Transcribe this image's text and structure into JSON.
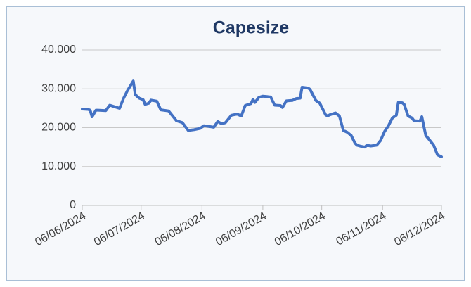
{
  "chart_data": {
    "type": "line",
    "title": "Capesize",
    "x": [
      "2024-06-06",
      "2024-06-09",
      "2024-06-10",
      "2024-06-11",
      "2024-06-13",
      "2024-06-14",
      "2024-06-18",
      "2024-06-20",
      "2024-06-23",
      "2024-06-25",
      "2024-06-27",
      "2024-06-29",
      "2024-07-02",
      "2024-07-03",
      "2024-07-05",
      "2024-07-07",
      "2024-07-08",
      "2024-07-10",
      "2024-07-11",
      "2024-07-14",
      "2024-07-16",
      "2024-07-20",
      "2024-07-24",
      "2024-07-27",
      "2024-07-30",
      "2024-08-02",
      "2024-08-05",
      "2024-08-07",
      "2024-08-11",
      "2024-08-12",
      "2024-08-14",
      "2024-08-16",
      "2024-08-18",
      "2024-08-21",
      "2024-08-24",
      "2024-08-26",
      "2024-08-28",
      "2024-08-31",
      "2024-09-01",
      "2024-09-02",
      "2024-09-04",
      "2024-09-06",
      "2024-09-08",
      "2024-09-10",
      "2024-09-12",
      "2024-09-15",
      "2024-09-16",
      "2024-09-18",
      "2024-09-21",
      "2024-09-23",
      "2024-09-25",
      "2024-09-26",
      "2024-09-29",
      "2024-09-30",
      "2024-10-03",
      "2024-10-05",
      "2024-10-08",
      "2024-10-09",
      "2024-10-10",
      "2024-10-13",
      "2024-10-15",
      "2024-10-17",
      "2024-10-19",
      "2024-10-21",
      "2024-10-23",
      "2024-10-24",
      "2024-10-26",
      "2024-10-28",
      "2024-10-29",
      "2024-10-31",
      "2024-11-03",
      "2024-11-05",
      "2024-11-07",
      "2024-11-09",
      "2024-11-11",
      "2024-11-13",
      "2024-11-14",
      "2024-11-16",
      "2024-11-17",
      "2024-11-19",
      "2024-11-21",
      "2024-11-22",
      "2024-11-25",
      "2024-11-26",
      "2024-11-28",
      "2024-11-30",
      "2024-12-02",
      "2024-12-04",
      "2024-12-06"
    ],
    "series": [
      {
        "name": "Capesize",
        "color": "#4472c4",
        "values": [
          24800,
          24700,
          24500,
          22800,
          24500,
          24500,
          24400,
          25800,
          25300,
          25000,
          27500,
          29500,
          32000,
          28500,
          27600,
          27200,
          26000,
          26300,
          27100,
          26800,
          24600,
          24300,
          21800,
          21300,
          19300,
          19500,
          19800,
          20500,
          20200,
          20100,
          21600,
          21000,
          21300,
          23200,
          23500,
          23000,
          25700,
          26200,
          27300,
          26500,
          27800,
          28100,
          28000,
          27900,
          25800,
          25700,
          25200,
          26900,
          27000,
          27500,
          27600,
          30400,
          30200,
          29900,
          27000,
          26300,
          23300,
          23000,
          23300,
          23800,
          23000,
          19300,
          18800,
          18000,
          16000,
          15500,
          15200,
          15000,
          15500,
          15300,
          15500,
          16700,
          19000,
          20500,
          22500,
          23200,
          26500,
          26400,
          26000,
          23000,
          22500,
          21800,
          21700,
          22800,
          18000,
          16800,
          15500,
          13000,
          12500
        ]
      }
    ],
    "xlim": [
      "2024-06-06",
      "2024-12-06"
    ],
    "xticks": [
      {
        "value": "2024-06-06",
        "label": "06/06/2024"
      },
      {
        "value": "2024-07-06",
        "label": "06/07/2024"
      },
      {
        "value": "2024-08-06",
        "label": "06/08/2024"
      },
      {
        "value": "2024-09-06",
        "label": "06/09/2024"
      },
      {
        "value": "2024-10-06",
        "label": "06/10/2024"
      },
      {
        "value": "2024-11-06",
        "label": "06/11/2024"
      },
      {
        "value": "2024-12-06",
        "label": "06/12/2024"
      }
    ],
    "ylim": [
      0,
      40000
    ],
    "yticks": [
      0,
      {
        "value": 10000,
        "label": "10.000"
      },
      {
        "value": 20000,
        "label": "20.000"
      },
      {
        "value": 30000,
        "label": "30.000"
      },
      {
        "value": 40000,
        "label": "40.000"
      }
    ],
    "grid": true
  }
}
